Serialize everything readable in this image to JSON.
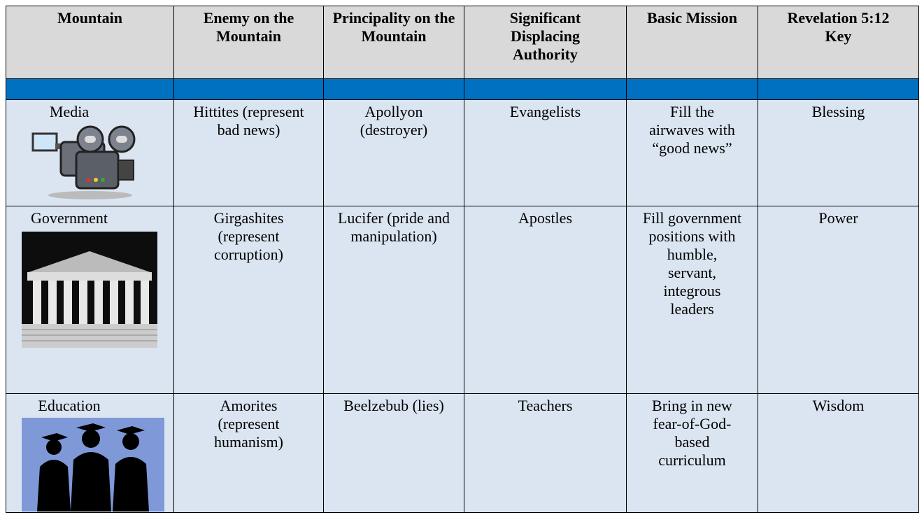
{
  "table": {
    "header": [
      "Mountain",
      "Enemy on the Mountain",
      "Principality on the Mountain",
      "Significant Displacing Authority",
      "Basic Mission",
      "Revelation 5:12 Key"
    ],
    "rows": [
      [
        "Media",
        "Hittites (represent bad news)",
        "Apollyon (destroyer)",
        "Evangelists",
        "Fill the airwaves with “good news”",
        "Blessing"
      ],
      [
        "Government",
        "Girgashites (represent corruption)",
        "Lucifer (pride and manipulation)",
        "Apostles",
        "Fill government positions with humble, servant, integrous leaders",
        "Power"
      ],
      [
        "Education",
        "Amorites (represent humanism)",
        "Beelzebub (lies)",
        "Teachers",
        "Bring in new fear-of-God-based curriculum",
        "Wisdom"
      ]
    ]
  }
}
